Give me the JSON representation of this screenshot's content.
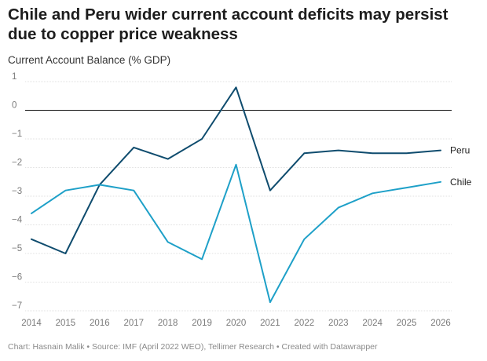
{
  "header": {
    "title": "Chile and Peru wider current account deficits may persist due to copper price weakness",
    "subtitle": "Current Account Balance (% GDP)"
  },
  "footer": {
    "text": "Chart: Hasnain Malik • Source: IMF (April 2022 WEO), Tellimer Research • Created with Datawrapper"
  },
  "chart_data": {
    "type": "line",
    "title": "Chile and Peru wider current account deficits may persist due to copper price weakness",
    "ylabel": "Current Account Balance (% GDP)",
    "xlabel": "",
    "x": [
      2014,
      2015,
      2016,
      2017,
      2018,
      2019,
      2020,
      2021,
      2022,
      2023,
      2024,
      2025,
      2026
    ],
    "ylim": [
      -7,
      1
    ],
    "yticks": [
      1,
      0,
      -1,
      -2,
      -3,
      -4,
      -5,
      -6,
      -7
    ],
    "ytick_labels": [
      "1",
      "0",
      "−1",
      "−2",
      "−3",
      "−4",
      "−5",
      "−6",
      "−7"
    ],
    "grid": true,
    "series": [
      {
        "name": "Peru",
        "color": "#0f4c6e",
        "values": [
          -4.5,
          -5.0,
          -2.6,
          -1.3,
          -1.7,
          -1.0,
          0.8,
          -2.8,
          -1.5,
          -1.4,
          -1.5,
          -1.5,
          -1.4
        ]
      },
      {
        "name": "Chile",
        "color": "#1ea0c8",
        "values": [
          -3.6,
          -2.8,
          -2.6,
          -2.8,
          -4.6,
          -5.2,
          -1.9,
          -6.7,
          -4.5,
          -3.4,
          -2.9,
          -2.7,
          -2.5
        ]
      }
    ]
  }
}
